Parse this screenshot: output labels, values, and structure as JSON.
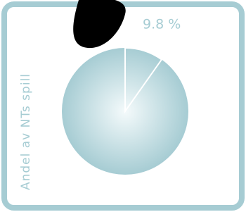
{
  "chart_data": {
    "type": "pie",
    "y_label": "Andel av NTs spill",
    "values": [
      9.8
    ],
    "value_labels": [
      "9.8 %"
    ],
    "color": "#a6ccd3"
  }
}
